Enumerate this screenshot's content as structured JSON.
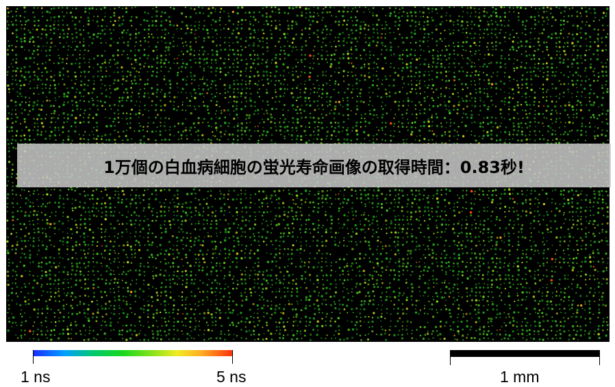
{
  "banner": {
    "text": "1万個の白血病細胞の蛍光寿命画像の取得時間：0.83秒!"
  },
  "colorbar": {
    "min_label": "1 ns",
    "max_label": "5 ns",
    "colors": [
      "#1a2cff",
      "#00a0ff",
      "#00c870",
      "#18d81c",
      "#8ae21a",
      "#f0ec20",
      "#ffae20",
      "#ff3010"
    ]
  },
  "scalebar": {
    "label": "1 mm"
  },
  "image": {
    "background_color": "#000000",
    "cell_colors": [
      "#1fa81f",
      "#3fbf1f",
      "#7fd21a",
      "#b0d81c",
      "#d8d820",
      "#f0a020",
      "#ff5010"
    ]
  }
}
